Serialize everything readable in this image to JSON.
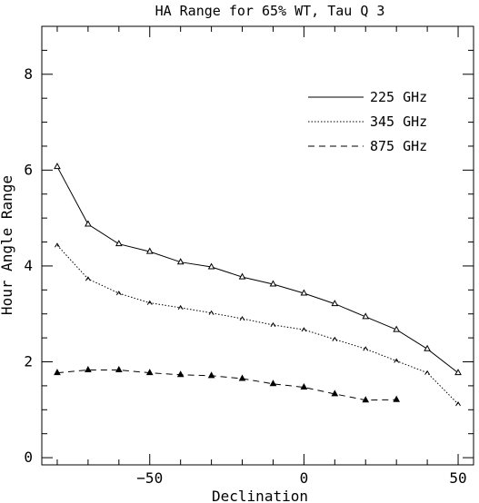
{
  "chart_data": {
    "type": "line",
    "title": "HA Range for 65% WT, Tau Q 3",
    "xlabel": "Declination",
    "ylabel": "Hour Angle Range",
    "xlim": [
      -85,
      55
    ],
    "ylim": [
      -0.15,
      9
    ],
    "xticks_major": [
      -50,
      0,
      50
    ],
    "yticks_major": [
      0,
      2,
      4,
      6,
      8
    ],
    "grid": false,
    "legend_position": "top-right",
    "series": [
      {
        "name": "225 GHz",
        "style": "solid",
        "marker": "triangle",
        "x": [
          -80,
          -70,
          -60,
          -50,
          -40,
          -30,
          -20,
          -10,
          0,
          10,
          20,
          30,
          40,
          50
        ],
        "y": [
          6.07,
          4.87,
          4.46,
          4.3,
          4.08,
          3.98,
          3.77,
          3.62,
          3.43,
          3.21,
          2.94,
          2.67,
          2.27,
          1.77
        ]
      },
      {
        "name": "345 GHz",
        "style": "dotted",
        "marker": "tick",
        "x": [
          -80,
          -70,
          -60,
          -50,
          -40,
          -30,
          -20,
          -10,
          0,
          10,
          20,
          30,
          40,
          50
        ],
        "y": [
          4.43,
          3.73,
          3.43,
          3.23,
          3.13,
          3.02,
          2.9,
          2.77,
          2.67,
          2.47,
          2.27,
          2.02,
          1.77,
          1.12
        ]
      },
      {
        "name": "875 GHz",
        "style": "dashed",
        "marker": "triangle",
        "x": [
          -80,
          -70,
          -60,
          -50,
          -40,
          -30,
          -20,
          -10,
          0,
          10,
          20,
          30
        ],
        "y": [
          1.77,
          1.83,
          1.83,
          1.77,
          1.73,
          1.71,
          1.65,
          1.54,
          1.47,
          1.33,
          1.2,
          1.21
        ]
      }
    ]
  }
}
